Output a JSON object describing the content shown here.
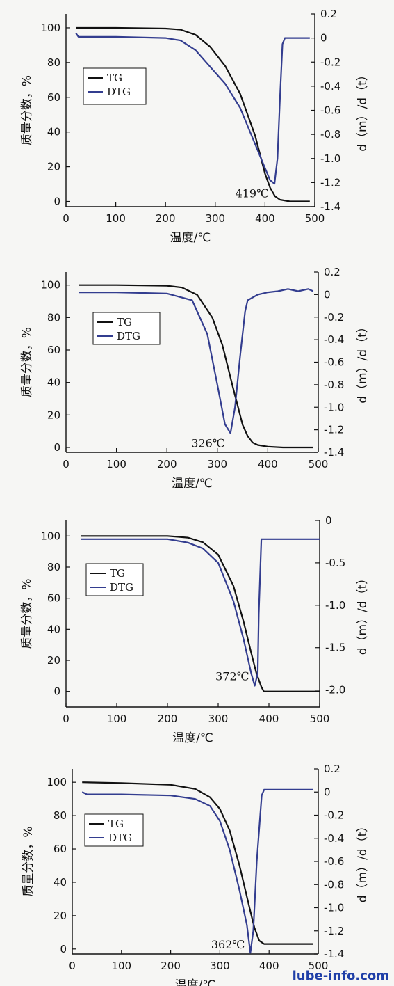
{
  "watermark": "lube-info.com",
  "colors": {
    "tg": "#111111",
    "dtg": "#333d8f"
  },
  "chart_data": [
    {
      "type": "line",
      "xlabel": "温度/℃",
      "ylabel_left": "质量分数，%",
      "ylabel_right": "d（m）/d（t）",
      "xlim": [
        0,
        500
      ],
      "xticks": [
        0,
        100,
        200,
        300,
        400,
        500
      ],
      "ylim_left": [
        -3,
        108
      ],
      "yticks_left": [
        0,
        20,
        40,
        60,
        80,
        100
      ],
      "ylim_right": [
        -1.4,
        0.2
      ],
      "yticks_right": [
        "0.2",
        "0",
        "-0.2",
        "-0.4",
        "-0.6",
        "-0.8",
        "-1.0",
        "-1.2",
        "-1.4"
      ],
      "legend": [
        "TG",
        "DTG"
      ],
      "legend_position": "left-middle",
      "annotation": {
        "text": "419℃",
        "x": 419,
        "y": 4
      },
      "series": [
        {
          "name": "TG",
          "axis": "left",
          "x": [
            20,
            100,
            200,
            230,
            260,
            290,
            320,
            350,
            380,
            400,
            410,
            420,
            430,
            450,
            490
          ],
          "y": [
            100,
            100,
            99.6,
            99,
            96,
            89,
            78,
            62,
            38,
            16,
            8,
            3,
            1,
            0,
            0
          ]
        },
        {
          "name": "DTG",
          "axis": "right",
          "x": [
            20,
            25,
            100,
            200,
            230,
            260,
            290,
            320,
            350,
            380,
            400,
            410,
            419,
            425,
            430,
            435,
            440,
            450,
            490
          ],
          "y": [
            0.04,
            0.01,
            0.01,
            0.0,
            -0.02,
            -0.1,
            -0.24,
            -0.38,
            -0.58,
            -0.88,
            -1.08,
            -1.18,
            -1.21,
            -1.0,
            -0.5,
            -0.05,
            0.0,
            0.0,
            0.0
          ]
        }
      ]
    },
    {
      "type": "line",
      "xlabel": "温度/℃",
      "ylabel_left": "质量分数，%",
      "ylabel_right": "d（m）/d（t）",
      "xlim": [
        0,
        500
      ],
      "xticks": [
        0,
        100,
        200,
        300,
        400,
        500
      ],
      "ylim_left": [
        -3,
        108
      ],
      "yticks_left": [
        0,
        20,
        40,
        60,
        80,
        100
      ],
      "ylim_right": [
        -1.4,
        0.2
      ],
      "yticks_right": [
        "0.2",
        "0",
        "-0.2",
        "-0.4",
        "-0.6",
        "-0.8",
        "-1.0",
        "-1.2",
        "-1.4"
      ],
      "legend": [
        "TG",
        "DTG"
      ],
      "legend_position": "left-middle",
      "annotation": {
        "text": "326℃",
        "x": 326,
        "y": 2
      },
      "series": [
        {
          "name": "TG",
          "axis": "left",
          "x": [
            25,
            100,
            200,
            230,
            260,
            290,
            310,
            330,
            350,
            360,
            370,
            380,
            400,
            430,
            490
          ],
          "y": [
            100,
            100,
            99.6,
            98.5,
            94,
            80,
            63,
            38,
            14,
            7,
            3,
            1.5,
            0.5,
            0,
            0
          ]
        },
        {
          "name": "DTG",
          "axis": "right",
          "x": [
            25,
            100,
            200,
            250,
            280,
            300,
            315,
            326,
            335,
            345,
            355,
            360,
            380,
            400,
            420,
            440,
            460,
            480,
            490
          ],
          "y": [
            0.02,
            0.02,
            0.01,
            -0.05,
            -0.35,
            -0.8,
            -1.15,
            -1.23,
            -1.0,
            -0.55,
            -0.15,
            -0.05,
            0.0,
            0.02,
            0.03,
            0.05,
            0.03,
            0.05,
            0.03
          ]
        }
      ]
    },
    {
      "type": "line",
      "xlabel": "温度/℃",
      "ylabel_left": "质量分数，%",
      "ylabel_right": "d（m）/d（t）",
      "xlim": [
        0,
        500
      ],
      "xticks": [
        0,
        100,
        200,
        300,
        400,
        500
      ],
      "ylim_left": [
        -10,
        110
      ],
      "yticks_left": [
        0,
        20,
        40,
        60,
        80,
        100
      ],
      "ylim_right": [
        -2.2,
        0
      ],
      "yticks_right": [
        "0",
        "-0.5",
        "-1.0",
        "-1.5",
        "-2.0"
      ],
      "legend": [
        "TG",
        "DTG"
      ],
      "legend_position": "left-middle",
      "annotation": {
        "text": "372℃",
        "x": 372,
        "y": 9
      },
      "series": [
        {
          "name": "TG",
          "axis": "left",
          "x": [
            30,
            100,
            200,
            240,
            270,
            300,
            330,
            350,
            365,
            375,
            385,
            390,
            400,
            500
          ],
          "y": [
            100,
            100,
            100,
            99,
            96,
            88,
            68,
            45,
            25,
            12,
            3,
            0,
            0,
            0
          ]
        },
        {
          "name": "DTG",
          "axis": "right",
          "x": [
            30,
            100,
            200,
            240,
            270,
            300,
            330,
            350,
            365,
            372,
            378,
            380,
            385,
            400,
            500
          ],
          "y": [
            -0.22,
            -0.22,
            -0.22,
            -0.26,
            -0.33,
            -0.5,
            -0.95,
            -1.4,
            -1.8,
            -1.95,
            -1.8,
            -1.1,
            -0.22,
            -0.22,
            -0.22
          ]
        }
      ]
    },
    {
      "type": "line",
      "xlabel": "温度/℃",
      "ylabel_left": "质量分数，%",
      "ylabel_right": "d（m）/d（t）",
      "xlim": [
        0,
        500
      ],
      "xticks": [
        0,
        100,
        200,
        300,
        400,
        500
      ],
      "ylim_left": [
        -3,
        108
      ],
      "yticks_left": [
        0,
        20,
        40,
        60,
        80,
        100
      ],
      "ylim_right": [
        -1.4,
        0.2
      ],
      "yticks_right": [
        "0.2",
        "0",
        "-0.2",
        "-0.4",
        "-0.6",
        "-0.8",
        "-1.0",
        "-1.2",
        "-1.4"
      ],
      "legend": [
        "TG",
        "DTG"
      ],
      "legend_position": "left-middle",
      "annotation": {
        "text": "362℃",
        "x": 362,
        "y": 2
      },
      "series": [
        {
          "name": "TG",
          "axis": "left",
          "x": [
            20,
            100,
            200,
            250,
            280,
            300,
            320,
            340,
            360,
            370,
            380,
            390,
            400,
            490
          ],
          "y": [
            100,
            99.5,
            98.5,
            96,
            91,
            84,
            71,
            50,
            25,
            13,
            5,
            3,
            3,
            3
          ]
        },
        {
          "name": "DTG",
          "axis": "right",
          "x": [
            20,
            30,
            100,
            200,
            250,
            280,
            300,
            320,
            340,
            355,
            362,
            368,
            375,
            385,
            390,
            400,
            490
          ],
          "y": [
            0.0,
            -0.02,
            -0.02,
            -0.03,
            -0.06,
            -0.12,
            -0.25,
            -0.5,
            -0.85,
            -1.15,
            -1.39,
            -1.2,
            -0.6,
            -0.03,
            0.02,
            0.02,
            0.02
          ]
        }
      ]
    }
  ]
}
